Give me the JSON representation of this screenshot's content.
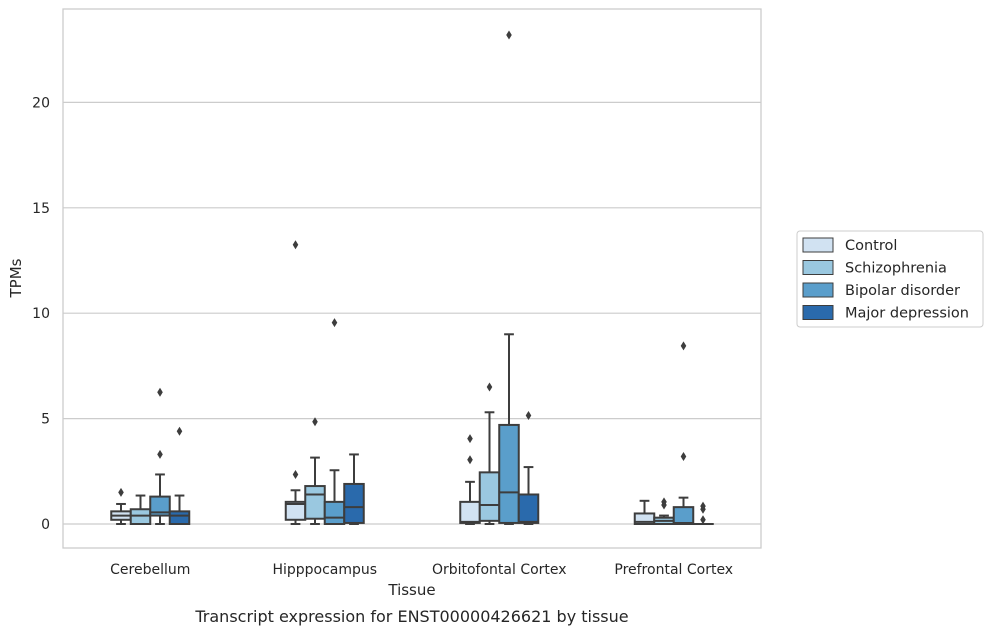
{
  "chart_data": {
    "type": "box",
    "caption": "Transcript expression for ENST00000426621 by tissue",
    "xlabel": "Tissue",
    "ylabel": "TPMs",
    "ylim": [
      -1.1,
      24.3
    ],
    "yticks": [
      0,
      5,
      10,
      15,
      20
    ],
    "grid": "horizontal",
    "legend_position": "right",
    "categories": [
      "Cerebellum",
      "Hipppocampus",
      "Orbitofontal Cortex",
      "Prefrontal Cortex"
    ],
    "series": [
      {
        "name": "Control",
        "color": "#d1e2f2",
        "boxes": [
          {
            "whislo": 0.0,
            "q1": 0.2,
            "med": 0.4,
            "q3": 0.6,
            "whishi": 0.95,
            "fliers": [
              1.5
            ]
          },
          {
            "whislo": 0.0,
            "q1": 0.2,
            "med": 0.95,
            "q3": 1.05,
            "whishi": 1.6,
            "fliers": [
              2.35,
              13.25
            ]
          },
          {
            "whislo": 0.0,
            "q1": 0.05,
            "med": 0.1,
            "q3": 1.05,
            "whishi": 2.0,
            "fliers": [
              3.05,
              4.05
            ]
          },
          {
            "whislo": 0.0,
            "q1": 0.0,
            "med": 0.1,
            "q3": 0.5,
            "whishi": 1.1,
            "fliers": []
          }
        ]
      },
      {
        "name": "Schizophrenia",
        "color": "#9ac8e0",
        "boxes": [
          {
            "whislo": 0.0,
            "q1": 0.0,
            "med": 0.4,
            "q3": 0.7,
            "whishi": 1.35,
            "fliers": []
          },
          {
            "whislo": 0.0,
            "q1": 0.25,
            "med": 1.4,
            "q3": 1.8,
            "whishi": 3.15,
            "fliers": [
              4.85
            ]
          },
          {
            "whislo": 0.0,
            "q1": 0.15,
            "med": 0.9,
            "q3": 2.45,
            "whishi": 5.3,
            "fliers": [
              6.5
            ]
          },
          {
            "whislo": 0.0,
            "q1": 0.0,
            "med": 0.15,
            "q3": 0.3,
            "whishi": 0.4,
            "fliers": [
              0.9,
              1.05
            ]
          }
        ]
      },
      {
        "name": "Bipolar disorder",
        "color": "#5a9ecb",
        "boxes": [
          {
            "whislo": 0.0,
            "q1": 0.4,
            "med": 0.55,
            "q3": 1.3,
            "whishi": 2.35,
            "fliers": [
              3.3,
              6.25
            ]
          },
          {
            "whislo": 0.0,
            "q1": 0.0,
            "med": 0.3,
            "q3": 1.05,
            "whishi": 2.55,
            "fliers": [
              9.55
            ]
          },
          {
            "whislo": 0.0,
            "q1": 0.05,
            "med": 1.5,
            "q3": 4.7,
            "whishi": 9.0,
            "fliers": [
              23.2
            ]
          },
          {
            "whislo": 0.0,
            "q1": 0.0,
            "med": 0.05,
            "q3": 0.8,
            "whishi": 1.25,
            "fliers": [
              3.2,
              8.45
            ]
          }
        ]
      },
      {
        "name": "Major depression",
        "color": "#2a6aac",
        "boxes": [
          {
            "whislo": 0.0,
            "q1": 0.0,
            "med": 0.4,
            "q3": 0.6,
            "whishi": 1.35,
            "fliers": [
              4.4
            ]
          },
          {
            "whislo": 0.0,
            "q1": 0.05,
            "med": 0.8,
            "q3": 1.9,
            "whishi": 3.3,
            "fliers": []
          },
          {
            "whislo": 0.0,
            "q1": 0.05,
            "med": 0.1,
            "q3": 1.4,
            "whishi": 2.7,
            "fliers": [
              5.15
            ]
          },
          {
            "whislo": 0.0,
            "q1": 0.0,
            "med": 0.0,
            "q3": 0.0,
            "whishi": 0.0,
            "fliers": [
              0.2,
              0.7,
              0.85
            ]
          }
        ]
      }
    ]
  }
}
